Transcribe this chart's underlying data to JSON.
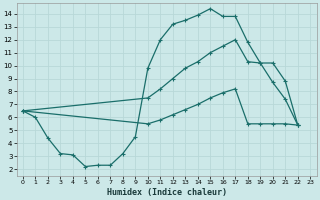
{
  "xlabel": "Humidex (Indice chaleur)",
  "bg_color": "#cce8e8",
  "grid_color": "#b8d8d8",
  "line_color": "#1a6e6a",
  "xlim": [
    -0.5,
    23.5
  ],
  "ylim": [
    1.5,
    14.8
  ],
  "xticks": [
    0,
    1,
    2,
    3,
    4,
    5,
    6,
    7,
    8,
    9,
    10,
    11,
    12,
    13,
    14,
    15,
    16,
    17,
    18,
    19,
    20,
    21,
    22,
    23
  ],
  "yticks": [
    2,
    3,
    4,
    5,
    6,
    7,
    8,
    9,
    10,
    11,
    12,
    13,
    14
  ],
  "line1_x": [
    0,
    1,
    2,
    3,
    4,
    5,
    6,
    7,
    8,
    9,
    10,
    11,
    12,
    13,
    14,
    15,
    16,
    17,
    18,
    19,
    20,
    21,
    22
  ],
  "line1_y": [
    6.5,
    6.0,
    4.4,
    3.2,
    3.1,
    2.2,
    2.3,
    2.3,
    3.2,
    4.5,
    9.8,
    12.0,
    13.2,
    13.5,
    13.9,
    14.4,
    13.8,
    13.8,
    11.8,
    10.2,
    8.7,
    7.4,
    5.4
  ],
  "line2_x": [
    0,
    10,
    11,
    12,
    13,
    14,
    15,
    16,
    17,
    18,
    19,
    20,
    21,
    22
  ],
  "line2_y": [
    6.5,
    7.5,
    8.2,
    9.0,
    9.8,
    10.3,
    11.0,
    11.5,
    12.0,
    10.3,
    10.2,
    10.2,
    8.8,
    5.4
  ],
  "line3_x": [
    0,
    10,
    11,
    12,
    13,
    14,
    15,
    16,
    17,
    18,
    19,
    20,
    21,
    22
  ],
  "line3_y": [
    6.5,
    5.5,
    5.8,
    6.2,
    6.6,
    7.0,
    7.5,
    7.9,
    8.2,
    5.5,
    5.5,
    5.5,
    5.5,
    5.4
  ]
}
